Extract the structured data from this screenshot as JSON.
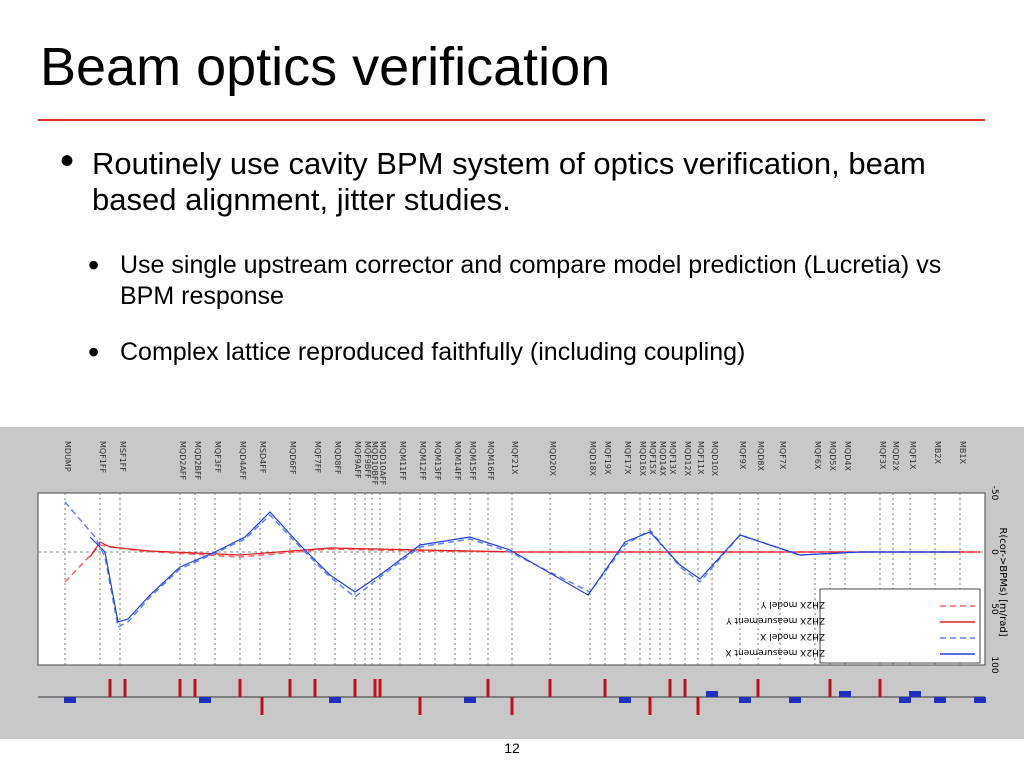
{
  "title": "Beam optics verification",
  "bullets": [
    {
      "text": "Routinely use cavity BPM system of optics verification, beam based alignment, jitter studies.",
      "sub": [
        "Use single upstream corrector and compare model prediction (Lucretia) vs BPM response",
        "Complex lattice reproduced faithfully (including coupling)"
      ]
    }
  ],
  "figure": {
    "elements": [
      "MDUMP",
      "MQF1FF",
      "MSF1FF",
      "MQD2AFF",
      "MQD2BFF",
      "MQF3FF",
      "MQD4AFF",
      "MSD4FF",
      "MQD6FF",
      "MQF7FF",
      "MQD8FF",
      "MQF9AFF",
      "MQF9BFF",
      "MQD10BFF",
      "MQD10AFF",
      "MQM11FF",
      "MQM12FF",
      "MQM13FF",
      "MQM14FF",
      "MQM15FF",
      "MQM16FF",
      "MQF21X",
      "MQD20X",
      "MQD18X",
      "MQF19X",
      "MQF17X",
      "MQD16X",
      "MQF15X",
      "MQD14X",
      "MQF13X",
      "MQD12X",
      "MQF11X",
      "MQD10X",
      "MQF9X",
      "MQD8X",
      "MQF7X",
      "MQF6X",
      "MQD5X",
      "MQD4X",
      "MQF3X",
      "MQD2X",
      "MQF1X",
      "MB2X",
      "MB1X"
    ],
    "axis_label": "R(cor->BPMs) [m/rad]",
    "axis_ticks": [
      "-50",
      "0",
      "50",
      "100"
    ],
    "legend": [
      "ZH2X measurement X",
      "ZH2X model X",
      "ZH2X measurement Y",
      "ZH2X model Y"
    ]
  },
  "page_number": "12"
}
